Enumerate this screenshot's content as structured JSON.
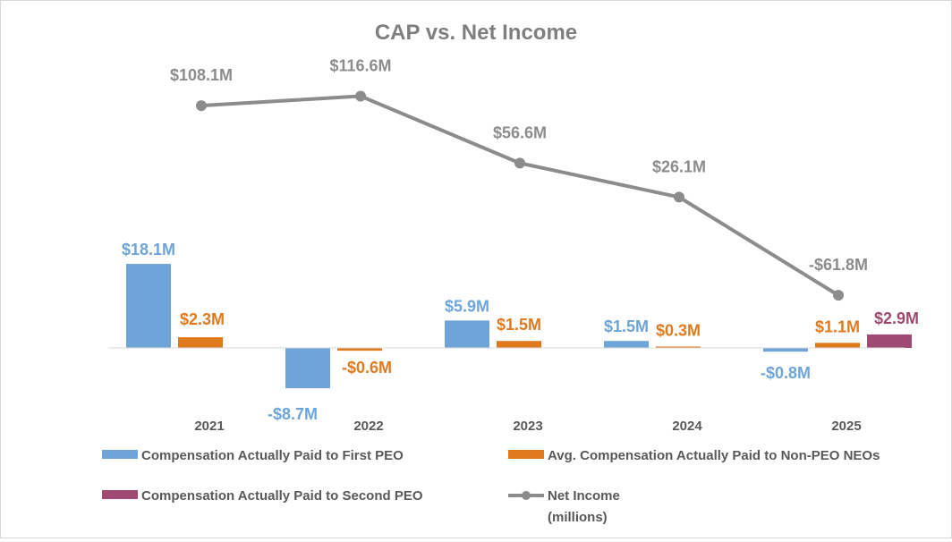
{
  "chart_data": {
    "type": "bar",
    "title": "CAP vs. Net Income",
    "categories": [
      "2021",
      "2022",
      "2023",
      "2024",
      "2025"
    ],
    "series": [
      {
        "name": "Compensation Actually Paid to First PEO",
        "type": "bar",
        "axis": "primary",
        "color": "#6ea4d8",
        "values": [
          18.1,
          -8.7,
          5.9,
          1.5,
          -0.8
        ],
        "labels": [
          "$18.1M",
          "-$8.7M",
          "$5.9M",
          "$1.5M",
          "-$0.8M"
        ]
      },
      {
        "name": "Avg. Compensation Actually Paid to Non-PEO NEOs",
        "type": "bar",
        "axis": "primary",
        "color": "#e07a1f",
        "values": [
          2.3,
          -0.6,
          1.5,
          0.3,
          1.1
        ],
        "labels": [
          "$2.3M",
          "-$0.6M",
          "$1.5M",
          "$0.3M",
          "$1.1M"
        ]
      },
      {
        "name": "Compensation Actually Paid to Second PEO",
        "type": "bar",
        "axis": "primary",
        "color": "#9e4a73",
        "values": [
          null,
          null,
          null,
          null,
          2.9
        ],
        "labels": [
          null,
          null,
          null,
          null,
          "$2.9M"
        ]
      },
      {
        "name": "Net Income (millions)",
        "type": "line",
        "axis": "secondary",
        "color": "#8c8c8c",
        "values": [
          108.1,
          116.6,
          56.6,
          26.1,
          -61.8
        ],
        "labels": [
          "$108.1M",
          "$116.6M",
          "$56.6M",
          "$26.1M",
          "-$61.8M"
        ]
      }
    ],
    "legend": {
      "position": "bottom",
      "items": [
        {
          "label": "Compensation Actually Paid to First PEO",
          "marker": "bar",
          "color": "#6ea4d8"
        },
        {
          "label": "Avg. Compensation Actually Paid to Non-PEO NEOs",
          "marker": "bar",
          "color": "#e07a1f"
        },
        {
          "label": "Compensation Actually Paid to Second PEO",
          "marker": "bar",
          "color": "#9e4a73"
        },
        {
          "label_lines": [
            "Net Income",
            "(millions)"
          ],
          "marker": "line",
          "color": "#8c8c8c"
        }
      ]
    },
    "xlabel": "",
    "ylabel": "",
    "grid": false,
    "axes_visible": false
  }
}
